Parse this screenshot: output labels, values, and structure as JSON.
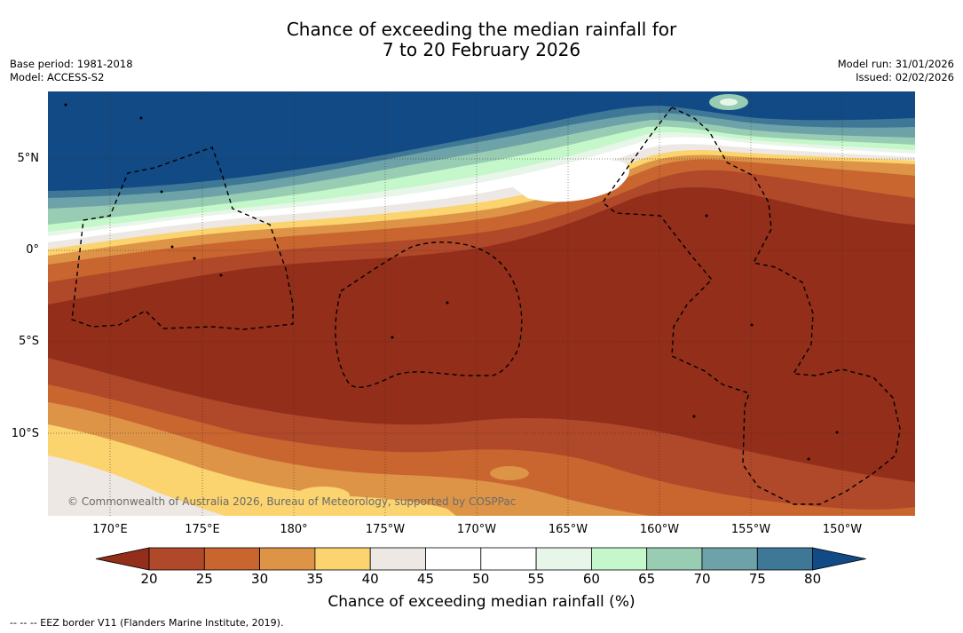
{
  "title": {
    "line1": "Chance of exceeding the median rainfall for",
    "line2": "7 to 20 February 2026"
  },
  "meta_left": {
    "base_period": "Base period: 1981-2018",
    "model": "Model: ACCESS-S2"
  },
  "meta_right": {
    "model_run": "Model run: 31/01/2026",
    "issued": "Issued: 02/02/2026"
  },
  "map": {
    "copyright": "© Commonwealth of Australia 2026, Bureau of Meteorology, supported by COSPPac",
    "lat_labels": [
      "5°N",
      "0°",
      "5°S",
      "10°S"
    ],
    "lon_labels": [
      "170°E",
      "175°E",
      "180°",
      "175°W",
      "170°W",
      "165°W",
      "160°W",
      "155°W",
      "150°W"
    ]
  },
  "colorbar": {
    "ticks": [
      "20",
      "25",
      "30",
      "35",
      "40",
      "45",
      "50",
      "55",
      "60",
      "65",
      "70",
      "75",
      "80"
    ],
    "colors": [
      "#922e1a",
      "#b0482a",
      "#c9652f",
      "#dd9447",
      "#fbd36f",
      "#ede8e3",
      "#ffffff",
      "#ffffff",
      "#e7f6e9",
      "#c4f7c9",
      "#98cdb3",
      "#6da3a8",
      "#3f7797",
      "#124a85"
    ],
    "title": "Chance of exceeding median rainfall (%)"
  },
  "footer": "--  --  -- EEZ border V11 (Flanders Marine Institute, 2019)."
}
